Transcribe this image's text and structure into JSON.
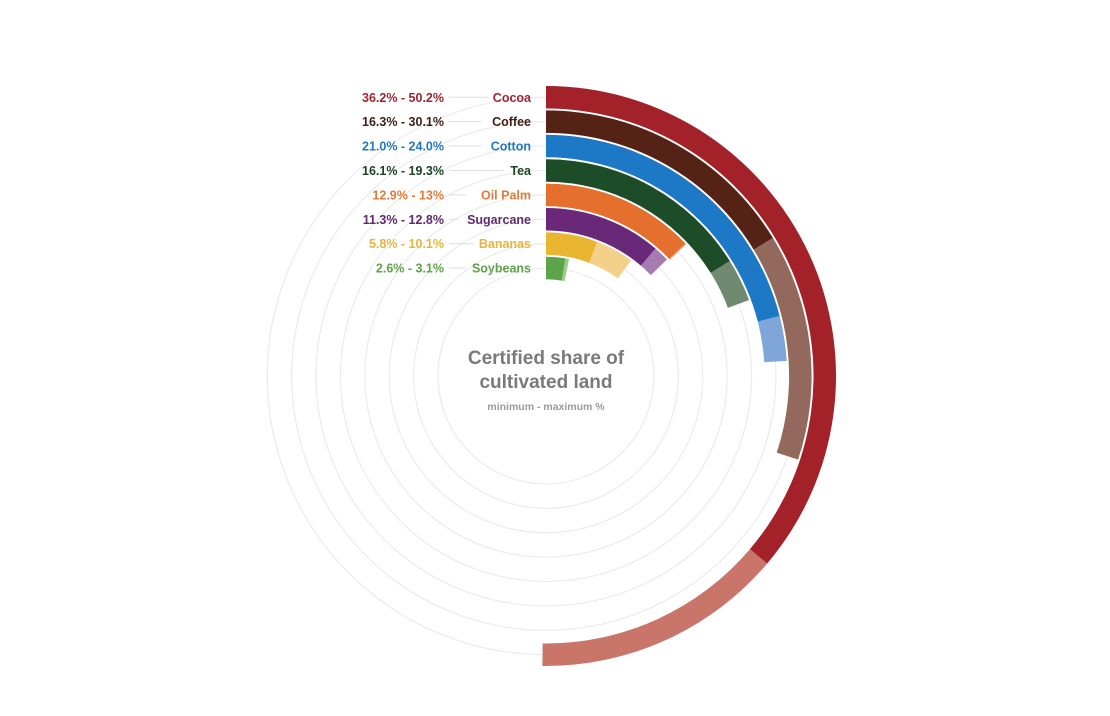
{
  "chart_data": {
    "type": "radial-bar",
    "title_line1": "Certified share of",
    "title_line2": "cultivated land",
    "subtitle": "minimum - maximum %",
    "value_max": 100,
    "series": [
      {
        "name": "Cocoa",
        "min": 36.2,
        "max": 50.2,
        "label": "36.2% - 50.2%",
        "color": "#a3222a",
        "color_light": "#c97569",
        "label_color": "#9b2530"
      },
      {
        "name": "Coffee",
        "min": 16.3,
        "max": 30.1,
        "label": "16.3% - 30.1%",
        "color": "#542315",
        "color_light": "#94695d",
        "label_color": "#3e1e12"
      },
      {
        "name": "Cotton",
        "min": 21.0,
        "max": 24.0,
        "label": "21.0% - 24.0%",
        "color": "#1d78c6",
        "color_light": "#7fa6d9",
        "label_color": "#1f78c0"
      },
      {
        "name": "Tea",
        "min": 16.1,
        "max": 19.3,
        "label": "16.1% - 19.3%",
        "color": "#1d4d28",
        "color_light": "#6f8a70",
        "label_color": "#1d4327"
      },
      {
        "name": "Oil Palm",
        "min": 12.9,
        "max": 13.0,
        "label": "12.9% - 13%",
        "color": "#e56f2c",
        "color_light": "#eea077",
        "label_color": "#e07a3a"
      },
      {
        "name": "Sugarcane",
        "min": 11.3,
        "max": 12.8,
        "label": "11.3% - 12.8%",
        "color": "#6a2879",
        "color_light": "#a57cb2",
        "label_color": "#5e2a6d"
      },
      {
        "name": "Bananas",
        "min": 5.8,
        "max": 10.1,
        "label": "5.8% - 10.1%",
        "color": "#eab530",
        "color_light": "#f4d18a",
        "label_color": "#e6b43c"
      },
      {
        "name": "Soybeans",
        "min": 2.6,
        "max": 3.1,
        "label": "2.6% - 3.1%",
        "color": "#5da34a",
        "color_light": "#9ccc89",
        "label_color": "#5da34a"
      }
    ]
  }
}
